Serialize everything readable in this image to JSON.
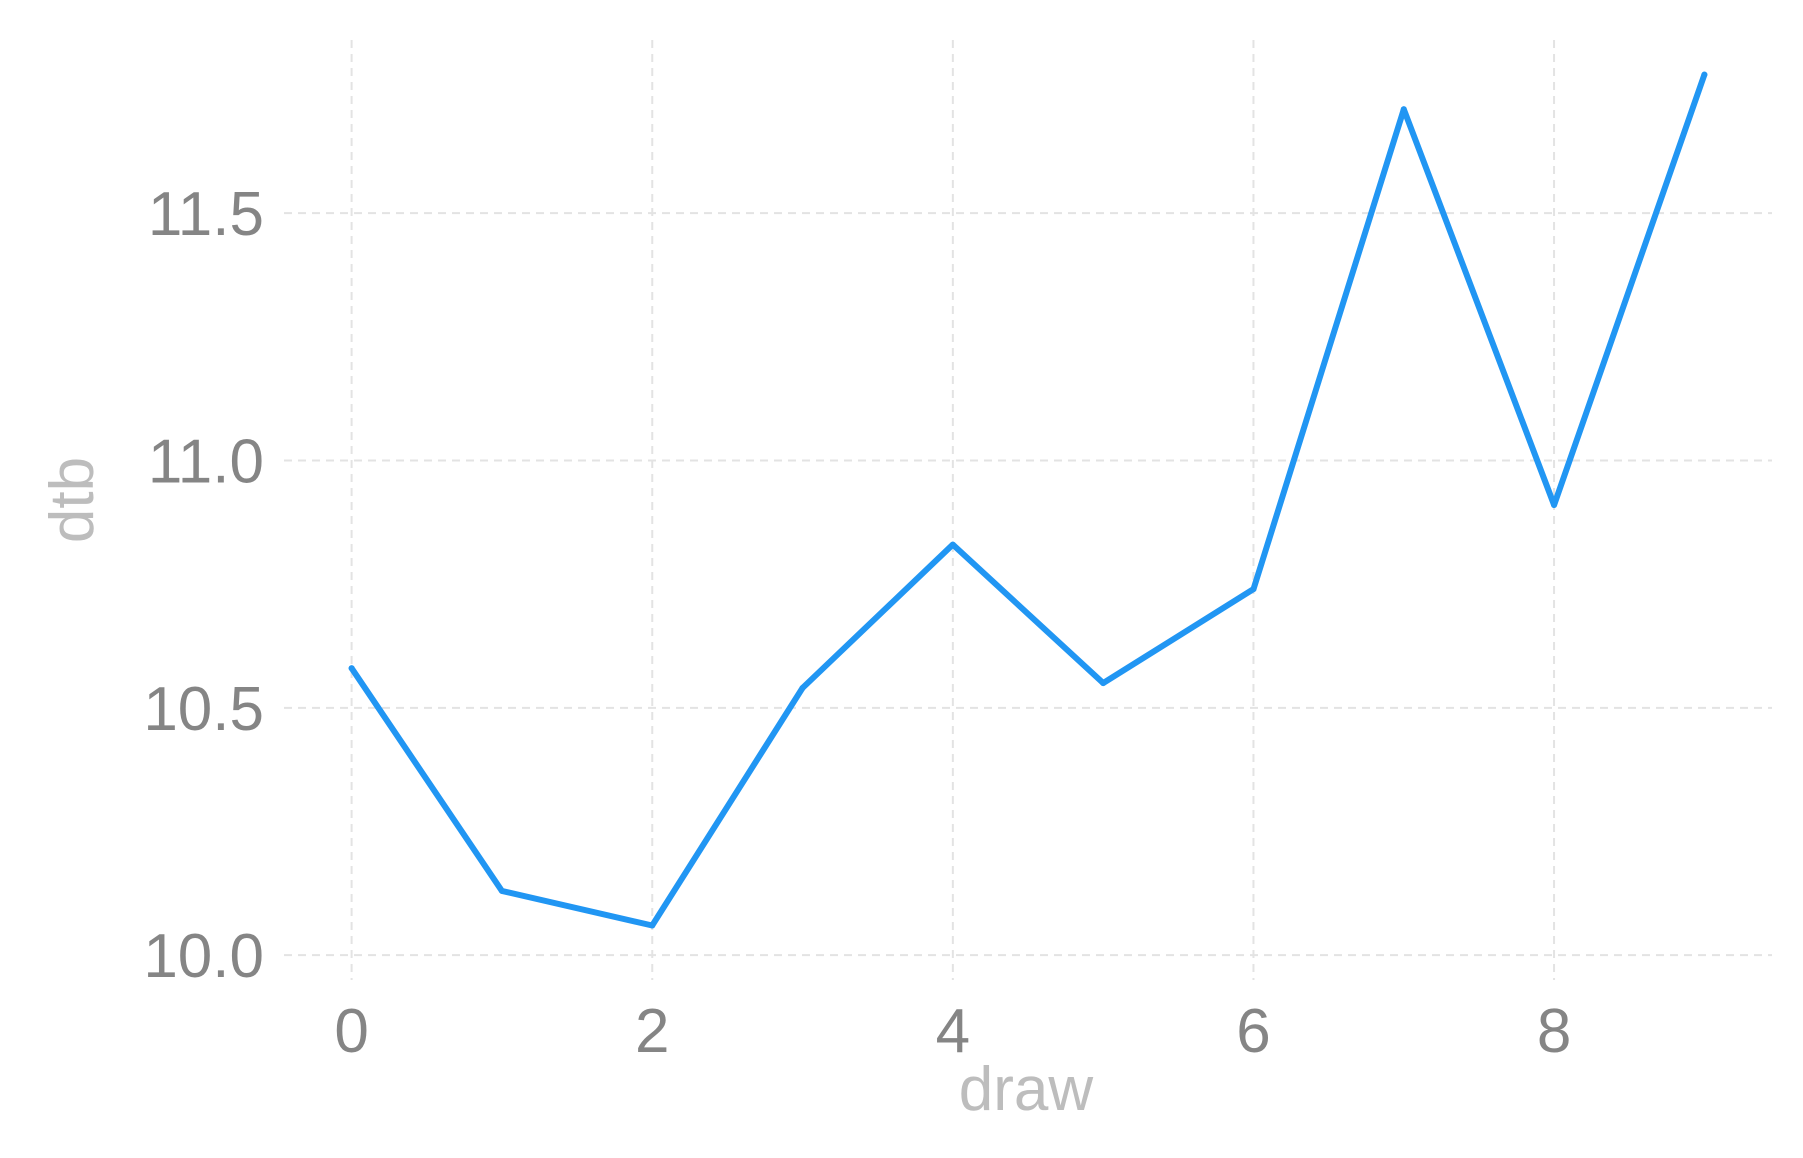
{
  "chart_data": {
    "type": "line",
    "title": "",
    "xlabel": "draw",
    "ylabel": "dtb",
    "x": [
      0,
      1,
      2,
      3,
      4,
      5,
      6,
      7,
      8,
      9
    ],
    "series": [
      {
        "values": [
          10.58,
          10.13,
          10.06,
          10.54,
          10.83,
          10.55,
          10.74,
          11.71,
          10.91,
          11.78
        ]
      }
    ],
    "xticks": [
      "0",
      "2",
      "4",
      "6",
      "8"
    ],
    "yticks": [
      "10.0",
      "10.5",
      "11.0",
      "11.5"
    ],
    "xlim": [
      -0.45,
      9.45
    ],
    "ylim": [
      9.97,
      11.85
    ],
    "grid": true,
    "legend": "none",
    "colors": {
      "series": "#2196f3",
      "grid": "#e3e3e3",
      "tick_text": "#858585",
      "axis_title": "#bdbdbd"
    }
  }
}
